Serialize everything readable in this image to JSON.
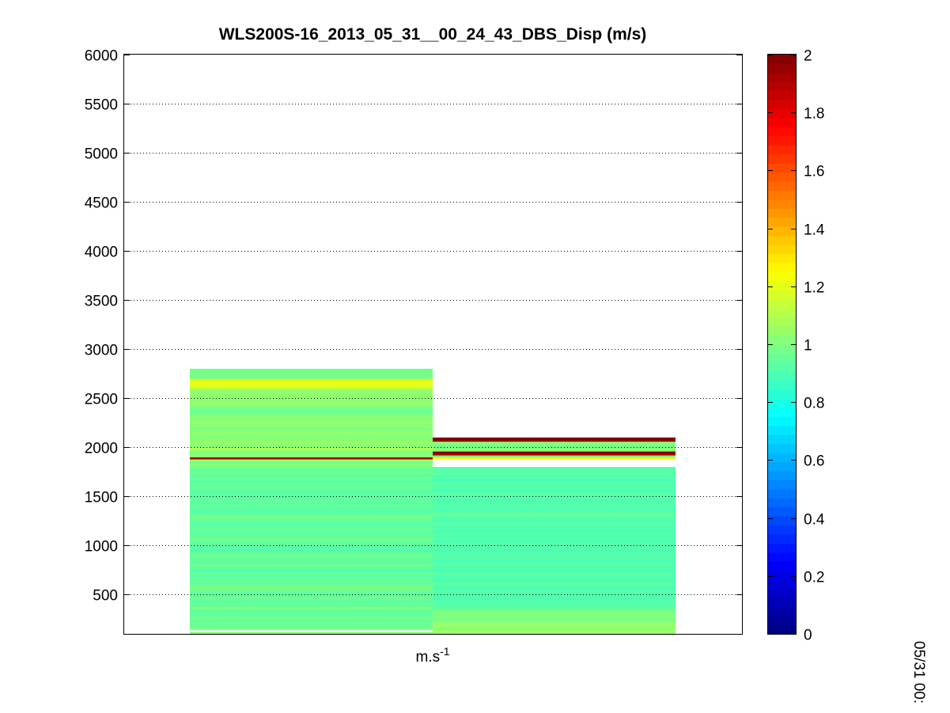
{
  "chart_data": {
    "type": "heatmap",
    "title": "WLS200S-16_2013_05_31__00_24_43_DBS_Disp (m/s)",
    "xlabel": "m.s",
    "xlabel_superscript": "-1",
    "side_label": "05/31 00:",
    "ylim": [
      100,
      6000
    ],
    "yticks": [
      500,
      1000,
      1500,
      2000,
      2500,
      3000,
      3500,
      4000,
      4500,
      5000,
      5500,
      6000
    ],
    "grid": "y-dotted",
    "colormap": "jet",
    "clim": [
      0,
      2
    ],
    "colorbar_ticks": [
      0,
      0.2,
      0.4,
      0.6,
      0.8,
      1,
      1.2,
      1.4,
      1.6,
      1.8,
      2
    ],
    "colorbar_position": "right",
    "range_gate_m": 20,
    "columns": [
      {
        "values": [
          [
            100,
            1.02
          ],
          [
            140,
            1.0
          ],
          [
            160,
            0.97
          ],
          [
            180,
            0.95
          ],
          [
            200,
            0.98
          ],
          [
            220,
            0.94
          ],
          [
            240,
            0.96
          ],
          [
            260,
            0.99
          ],
          [
            280,
            0.93
          ],
          [
            300,
            0.95
          ],
          [
            320,
            0.92
          ],
          [
            340,
            0.97
          ],
          [
            360,
            0.99
          ],
          [
            380,
            0.94
          ],
          [
            400,
            0.96
          ],
          [
            420,
            0.92
          ],
          [
            440,
            0.95
          ],
          [
            460,
            0.98
          ],
          [
            480,
            0.93
          ],
          [
            500,
            0.96
          ],
          [
            520,
            0.94
          ],
          [
            540,
            0.97
          ],
          [
            560,
            1.0
          ],
          [
            580,
            0.98
          ],
          [
            600,
            0.95
          ],
          [
            620,
            0.93
          ],
          [
            640,
            0.96
          ],
          [
            660,
            0.94
          ],
          [
            680,
            0.92
          ],
          [
            700,
            0.95
          ],
          [
            720,
            0.93
          ],
          [
            740,
            0.91
          ],
          [
            760,
            0.94
          ],
          [
            780,
            0.97
          ],
          [
            800,
            0.95
          ],
          [
            820,
            0.92
          ],
          [
            840,
            0.96
          ],
          [
            860,
            0.94
          ],
          [
            880,
            0.97
          ],
          [
            900,
            0.95
          ],
          [
            920,
            0.93
          ],
          [
            940,
            0.91
          ],
          [
            960,
            0.94
          ],
          [
            980,
            0.92
          ],
          [
            1000,
            0.95
          ],
          [
            1020,
            0.93
          ],
          [
            1040,
            0.96
          ],
          [
            1060,
            0.98
          ],
          [
            1080,
            0.94
          ],
          [
            1100,
            0.92
          ],
          [
            1120,
            0.95
          ],
          [
            1140,
            0.93
          ],
          [
            1160,
            0.96
          ],
          [
            1180,
            0.94
          ],
          [
            1200,
            0.92
          ],
          [
            1220,
            0.95
          ],
          [
            1240,
            0.93
          ],
          [
            1260,
            0.96
          ],
          [
            1280,
            0.98
          ],
          [
            1300,
            0.95
          ],
          [
            1320,
            0.93
          ],
          [
            1340,
            0.91
          ],
          [
            1360,
            0.94
          ],
          [
            1380,
            0.92
          ],
          [
            1400,
            0.95
          ],
          [
            1420,
            0.93
          ],
          [
            1440,
            0.96
          ],
          [
            1460,
            0.94
          ],
          [
            1480,
            0.92
          ],
          [
            1500,
            0.95
          ],
          [
            1520,
            0.93
          ],
          [
            1540,
            0.91
          ],
          [
            1560,
            0.94
          ],
          [
            1580,
            0.96
          ],
          [
            1600,
            0.93
          ],
          [
            1620,
            0.95
          ],
          [
            1640,
            0.92
          ],
          [
            1660,
            0.94
          ],
          [
            1680,
            0.96
          ],
          [
            1700,
            0.93
          ],
          [
            1720,
            0.95
          ],
          [
            1740,
            0.97
          ],
          [
            1760,
            0.94
          ],
          [
            1780,
            0.96
          ],
          [
            1800,
            0.99
          ],
          [
            1820,
            1.04
          ],
          [
            1840,
            0.97
          ],
          [
            1860,
            1.05
          ],
          [
            1880,
            1.95
          ],
          [
            1900,
            1.03
          ],
          [
            1920,
            1.02
          ],
          [
            1940,
            1.0
          ],
          [
            1960,
            1.04
          ],
          [
            1980,
            1.1
          ],
          [
            2000,
            1.01
          ],
          [
            2020,
            1.03
          ],
          [
            2040,
            1.05
          ],
          [
            2060,
            1.02
          ],
          [
            2080,
            1.0
          ],
          [
            2100,
            1.03
          ],
          [
            2120,
            1.01
          ],
          [
            2140,
            1.04
          ],
          [
            2160,
            1.02
          ],
          [
            2180,
            0.98
          ],
          [
            2200,
            1.03
          ],
          [
            2220,
            1.01
          ],
          [
            2240,
            1.05
          ],
          [
            2260,
            1.02
          ],
          [
            2280,
            1.0
          ],
          [
            2300,
            1.04
          ],
          [
            2320,
            0.99
          ],
          [
            2340,
            0.97
          ],
          [
            2360,
            0.96
          ],
          [
            2380,
            0.98
          ],
          [
            2400,
            0.99
          ],
          [
            2420,
            1.03
          ],
          [
            2440,
            1.05
          ],
          [
            2460,
            1.02
          ],
          [
            2480,
            1.04
          ],
          [
            2500,
            1.01
          ],
          [
            2520,
            1.03
          ],
          [
            2540,
            1.05
          ],
          [
            2560,
            1.02
          ],
          [
            2580,
            1.04
          ],
          [
            2600,
            1.18
          ],
          [
            2620,
            1.2
          ],
          [
            2640,
            1.19
          ],
          [
            2660,
            1.21
          ],
          [
            2680,
            1.2
          ],
          [
            2700,
            0.98
          ],
          [
            2720,
            0.97
          ],
          [
            2740,
            0.99
          ],
          [
            2760,
            0.98
          ],
          [
            2780,
            0.97
          ]
        ]
      },
      {
        "values": [
          [
            100,
            1.03
          ],
          [
            120,
            1.06
          ],
          [
            140,
            1.04
          ],
          [
            160,
            1.02
          ],
          [
            180,
            1.05
          ],
          [
            200,
            1.03
          ],
          [
            220,
            1.0
          ],
          [
            240,
            0.97
          ],
          [
            260,
            1.02
          ],
          [
            280,
            0.99
          ],
          [
            300,
            1.01
          ],
          [
            320,
            0.98
          ],
          [
            340,
            0.96
          ],
          [
            360,
            0.94
          ],
          [
            380,
            0.92
          ],
          [
            400,
            0.9
          ],
          [
            420,
            0.93
          ],
          [
            440,
            0.91
          ],
          [
            460,
            0.89
          ],
          [
            480,
            0.92
          ],
          [
            500,
            0.9
          ],
          [
            520,
            0.93
          ],
          [
            540,
            0.91
          ],
          [
            560,
            0.89
          ],
          [
            580,
            0.92
          ],
          [
            600,
            0.94
          ],
          [
            620,
            0.91
          ],
          [
            640,
            0.89
          ],
          [
            660,
            0.92
          ],
          [
            680,
            0.9
          ],
          [
            700,
            0.93
          ],
          [
            720,
            0.91
          ],
          [
            740,
            0.89
          ],
          [
            760,
            0.92
          ],
          [
            780,
            0.9
          ],
          [
            800,
            0.93
          ],
          [
            820,
            0.91
          ],
          [
            840,
            0.89
          ],
          [
            860,
            0.92
          ],
          [
            880,
            0.9
          ],
          [
            900,
            0.93
          ],
          [
            920,
            0.91
          ],
          [
            940,
            0.89
          ],
          [
            960,
            0.92
          ],
          [
            980,
            0.9
          ],
          [
            1000,
            0.93
          ],
          [
            1020,
            0.91
          ],
          [
            1040,
            0.89
          ],
          [
            1060,
            0.92
          ],
          [
            1080,
            0.9
          ],
          [
            1100,
            0.93
          ],
          [
            1120,
            0.91
          ],
          [
            1140,
            0.89
          ],
          [
            1160,
            0.92
          ],
          [
            1180,
            0.9
          ],
          [
            1200,
            0.93
          ],
          [
            1220,
            0.91
          ],
          [
            1240,
            0.89
          ],
          [
            1260,
            0.92
          ],
          [
            1280,
            0.9
          ],
          [
            1300,
            0.96
          ],
          [
            1320,
            0.93
          ],
          [
            1340,
            0.91
          ],
          [
            1360,
            0.89
          ],
          [
            1380,
            0.92
          ],
          [
            1400,
            0.9
          ],
          [
            1420,
            0.93
          ],
          [
            1440,
            0.91
          ],
          [
            1460,
            0.89
          ],
          [
            1480,
            0.92
          ],
          [
            1500,
            0.9
          ],
          [
            1520,
            0.93
          ],
          [
            1540,
            0.91
          ],
          [
            1560,
            0.89
          ],
          [
            1580,
            0.92
          ],
          [
            1600,
            0.9
          ],
          [
            1620,
            0.93
          ],
          [
            1640,
            0.91
          ],
          [
            1660,
            0.89
          ],
          [
            1680,
            0.92
          ],
          [
            1700,
            0.9
          ],
          [
            1720,
            0.93
          ],
          [
            1740,
            0.91
          ],
          [
            1760,
            0.93
          ],
          [
            1780,
            0.92
          ],
          [
            1880,
            1.25
          ],
          [
            1900,
            1.0
          ],
          [
            1920,
            1.92
          ],
          [
            1940,
            2.0
          ],
          [
            1960,
            1.05
          ],
          [
            1980,
            1.0
          ],
          [
            2000,
            0.98
          ],
          [
            2020,
            1.0
          ],
          [
            2040,
            1.02
          ],
          [
            2060,
            1.97
          ],
          [
            2080,
            2.0
          ]
        ]
      }
    ]
  }
}
